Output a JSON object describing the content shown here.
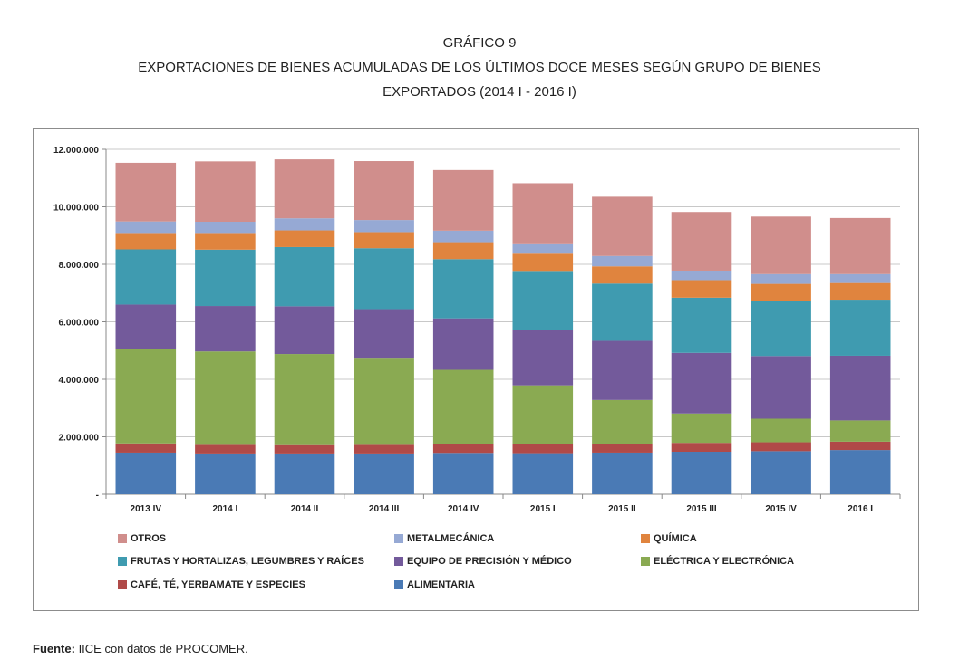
{
  "header": {
    "line1": "GRÁFICO 9",
    "line2": "EXPORTACIONES DE BIENES ACUMULADAS DE LOS ÚLTIMOS DOCE MESES SEGÚN GRUPO DE BIENES",
    "line3": "EXPORTADOS (2014 I - 2016 I)"
  },
  "source": {
    "label": "Fuente:",
    "text": " IICE con datos de PROCOMER."
  },
  "chart_data": {
    "type": "bar",
    "stacked": true,
    "title": "EXPORTACIONES DE BIENES ACUMULADAS DE LOS ÚLTIMOS DOCE MESES SEGÚN GRUPO DE BIENES EXPORTADOS (2014 I - 2016 I)",
    "categories": [
      "2013 IV",
      "2014 I",
      "2014 II",
      "2014 III",
      "2014 IV",
      "2015 I",
      "2015 II",
      "2015 III",
      "2015 IV",
      "2016 I"
    ],
    "ylim": [
      0,
      12000000
    ],
    "yticks": [
      0,
      2000000,
      4000000,
      6000000,
      8000000,
      10000000,
      12000000
    ],
    "ytick_labels": [
      "-",
      "2.000.000",
      "4.000.000",
      "6.000.000",
      "8.000.000",
      "10.000.000",
      "12.000.000"
    ],
    "series": [
      {
        "name": "ALIMENTARIA",
        "color": "#4a7ab5",
        "values": [
          1450000,
          1420000,
          1420000,
          1420000,
          1440000,
          1430000,
          1450000,
          1480000,
          1500000,
          1540000
        ]
      },
      {
        "name": "CAFÉ, TÉ, YERBAMATE Y ESPECIES",
        "color": "#b04a48",
        "values": [
          320000,
          300000,
          290000,
          300000,
          310000,
          310000,
          310000,
          310000,
          310000,
          290000
        ]
      },
      {
        "name": "ELÉCTRICA Y ELECTRÓNICA",
        "color": "#8aaa52",
        "values": [
          3270000,
          3250000,
          3170000,
          3000000,
          2580000,
          2050000,
          1520000,
          1020000,
          820000,
          740000
        ]
      },
      {
        "name": "EQUIPO DE PRECISIÓN Y MÉDICO",
        "color": "#735a9b",
        "values": [
          1560000,
          1580000,
          1660000,
          1720000,
          1790000,
          1940000,
          2060000,
          2110000,
          2180000,
          2250000
        ]
      },
      {
        "name": "FRUTAS Y HORTALIZAS, LEGUMBRES Y RAÍCES",
        "color": "#3f9bb0",
        "values": [
          1920000,
          1960000,
          2060000,
          2120000,
          2060000,
          2040000,
          1990000,
          1920000,
          1920000,
          1950000
        ]
      },
      {
        "name": "QUÍMICA",
        "color": "#e0843e",
        "values": [
          570000,
          580000,
          580000,
          560000,
          590000,
          600000,
          600000,
          610000,
          590000,
          580000
        ]
      },
      {
        "name": "METALMECÁNICA",
        "color": "#96a9d4",
        "values": [
          400000,
          390000,
          420000,
          420000,
          400000,
          360000,
          360000,
          330000,
          340000,
          310000
        ]
      },
      {
        "name": "OTROS",
        "color": "#d08e8c",
        "values": [
          2040000,
          2100000,
          2050000,
          2050000,
          2110000,
          2090000,
          2060000,
          2040000,
          2000000,
          1950000
        ]
      }
    ],
    "legend": {
      "placement": "bottom",
      "order": [
        "OTROS",
        "METALMECÁNICA",
        "QUÍMICA",
        "FRUTAS Y HORTALIZAS, LEGUMBRES Y RAÍCES",
        "EQUIPO DE PRECISIÓN Y MÉDICO",
        "ELÉCTRICA Y ELECTRÓNICA",
        "CAFÉ, TÉ, YERBAMATE Y ESPECIES",
        "ALIMENTARIA"
      ]
    },
    "grid": true
  }
}
